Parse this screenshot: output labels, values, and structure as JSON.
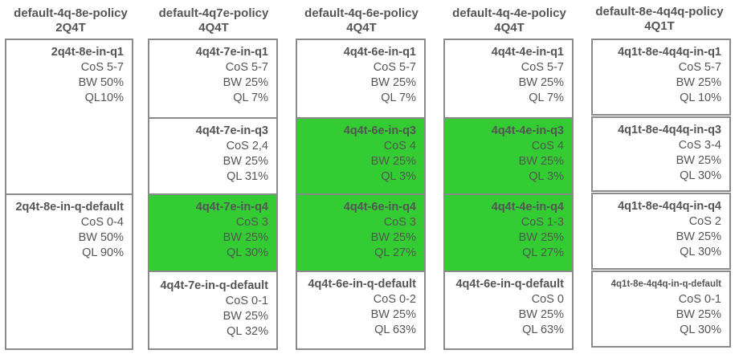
{
  "colors": {
    "highlight": "#33cc33",
    "border": "#8a8a8a",
    "text": "#555555"
  },
  "columns": [
    {
      "title": "default-4q-8e-policy",
      "subtitle": "2Q4T",
      "queues": [
        {
          "name": "2q4t-8e-in-q1",
          "cos": "CoS 5-7",
          "bw": "BW 50%",
          "ql": "QL10%",
          "highlighted": false
        },
        {
          "name": "2q4t-8e-in-q-default",
          "cos": "CoS 0-4",
          "bw": "BW 50%",
          "ql": "QL 90%",
          "highlighted": false
        }
      ]
    },
    {
      "title": "default-4q7e-policy",
      "subtitle": "4Q4T",
      "queues": [
        {
          "name": "4q4t-7e-in-q1",
          "cos": "CoS 5-7",
          "bw": "BW 25%",
          "ql": "QL 7%",
          "highlighted": false
        },
        {
          "name": "4q4t-7e-in-q3",
          "cos": "CoS 2,4",
          "bw": "BW 25%",
          "ql": "QL 31%",
          "highlighted": false
        },
        {
          "name": "4q4t-7e-in-q4",
          "cos": "CoS 3",
          "bw": "BW 25%",
          "ql": "QL 30%",
          "highlighted": true
        },
        {
          "name": "4q4t-7e-in-q-default",
          "cos": "CoS 0-1",
          "bw": "BW 25%",
          "ql": "QL 32%",
          "highlighted": false
        }
      ]
    },
    {
      "title": "default-4q-6e-policy",
      "subtitle": "4Q4T",
      "queues": [
        {
          "name": "4q4t-6e-in-q1",
          "cos": "CoS 5-7",
          "bw": "BW 25%",
          "ql": "QL 7%",
          "highlighted": false
        },
        {
          "name": "4q4t-6e-in-q3",
          "cos": "CoS 4",
          "bw": "BW 25%",
          "ql": "QL 3%",
          "highlighted": true
        },
        {
          "name": "4q4t-6e-in-q4",
          "cos": "CoS 3",
          "bw": "BW 25%",
          "ql": "QL 27%",
          "highlighted": true
        },
        {
          "name": "4q4t-6e-in-q-default",
          "cos": "CoS 0-2",
          "bw": "BW 25%",
          "ql": "QL 63%",
          "highlighted": false
        }
      ]
    },
    {
      "title": "default-4q-4e-policy",
      "subtitle": "4Q4T",
      "queues": [
        {
          "name": "4q4t-4e-in-q1",
          "cos": "CoS 5-7",
          "bw": "BW 25%",
          "ql": "QL 7%",
          "highlighted": false
        },
        {
          "name": "4q4t-4e-in-q3",
          "cos": "CoS 4",
          "bw": "BW 25%",
          "ql": "QL 3%",
          "highlighted": true
        },
        {
          "name": "4q4t-4e-in-q4",
          "cos": "CoS 1-3",
          "bw": "BW 25%",
          "ql": "QL 27%",
          "highlighted": true
        },
        {
          "name": "4q4t-6e-in-q-default",
          "cos": "CoS 0",
          "bw": "BW 25%",
          "ql": "QL 63%",
          "highlighted": false
        }
      ]
    },
    {
      "title": "default-8e-4q4q-policy",
      "subtitle": "4Q1T",
      "queues": [
        {
          "name": "4q1t-8e-4q4q-in-q1",
          "cos": "CoS 5-7",
          "bw": "BW 25%",
          "ql": "QL 10%",
          "highlighted": false
        },
        {
          "name": "4q1t-8e-4q4q-in-q3",
          "cos": "CoS 3-4",
          "bw": "BW 25%",
          "ql": "QL 30%",
          "highlighted": false
        },
        {
          "name": "4q1t-8e-4q4q-in-q4",
          "cos": "CoS 2",
          "bw": "BW 25%",
          "ql": "QL 30%",
          "highlighted": false
        },
        {
          "name": "4q1t-8e-4q4q-in-q-default",
          "cos": "CoS 0-1",
          "bw": "BW 25%",
          "ql": "QL 30%",
          "highlighted": false
        }
      ]
    }
  ]
}
